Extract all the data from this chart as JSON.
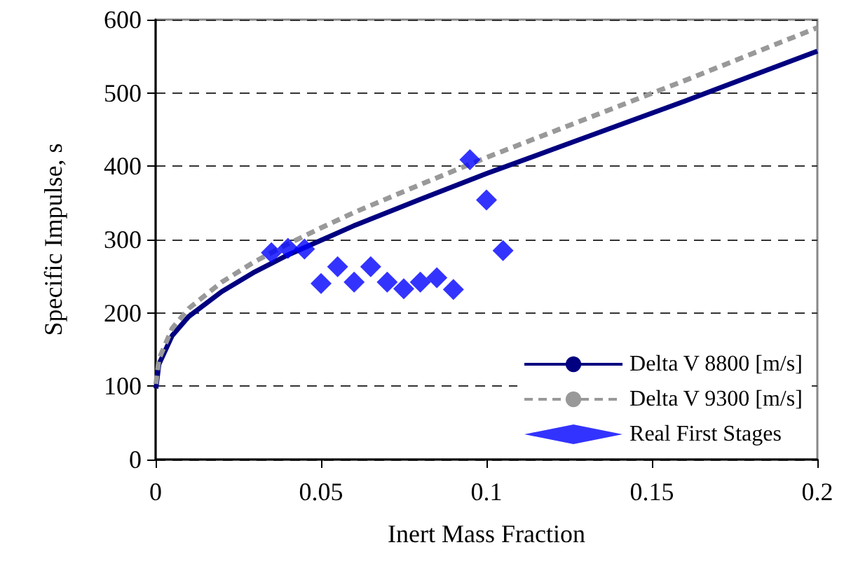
{
  "chart_data": {
    "type": "line",
    "xlabel": "Inert Mass Fraction",
    "ylabel": "Specific Impulse, s",
    "xlim": [
      0,
      0.2
    ],
    "xticks": [
      0,
      0.05,
      0.1,
      0.15,
      0.2
    ],
    "ylim": [
      0,
      600
    ],
    "yticks": [
      0,
      100,
      200,
      300,
      400,
      500,
      600
    ],
    "grid": "y",
    "legend": "bottom right",
    "series": [
      {
        "name": "Delta V 8800 [m/s]",
        "color": "#000080",
        "line_style": "solid",
        "marker": "none",
        "x": [
          0.0001,
          0.001,
          0.005,
          0.01,
          0.02,
          0.03,
          0.04,
          0.05,
          0.06,
          0.08,
          0.1,
          0.12,
          0.14,
          0.16,
          0.18,
          0.2
        ],
        "values": [
          97,
          130,
          169,
          195,
          229,
          256,
          279,
          299,
          319,
          355,
          390,
          423,
          456,
          489,
          523,
          557
        ]
      },
      {
        "name": "Delta V 9300 [m/s]",
        "color": "#999999",
        "line_style": "dashed",
        "marker": "none",
        "x": [
          0.0001,
          0.001,
          0.005,
          0.01,
          0.02,
          0.03,
          0.04,
          0.05,
          0.06,
          0.08,
          0.1,
          0.12,
          0.14,
          0.16,
          0.18,
          0.2
        ],
        "values": [
          103,
          137,
          179,
          206,
          242,
          270,
          294,
          316,
          337,
          375,
          412,
          447,
          482,
          517,
          553,
          589
        ]
      },
      {
        "name": "Real First Stages",
        "type": "scatter",
        "color": "#0000ff",
        "marker": "diamond",
        "x": [
          0.035,
          0.04,
          0.045,
          0.05,
          0.055,
          0.06,
          0.065,
          0.07,
          0.075,
          0.08,
          0.085,
          0.09,
          0.095,
          0.1,
          0.105
        ],
        "values": [
          282,
          288,
          287,
          240,
          263,
          242,
          263,
          242,
          233,
          242,
          248,
          232,
          409,
          354,
          285
        ]
      }
    ]
  }
}
